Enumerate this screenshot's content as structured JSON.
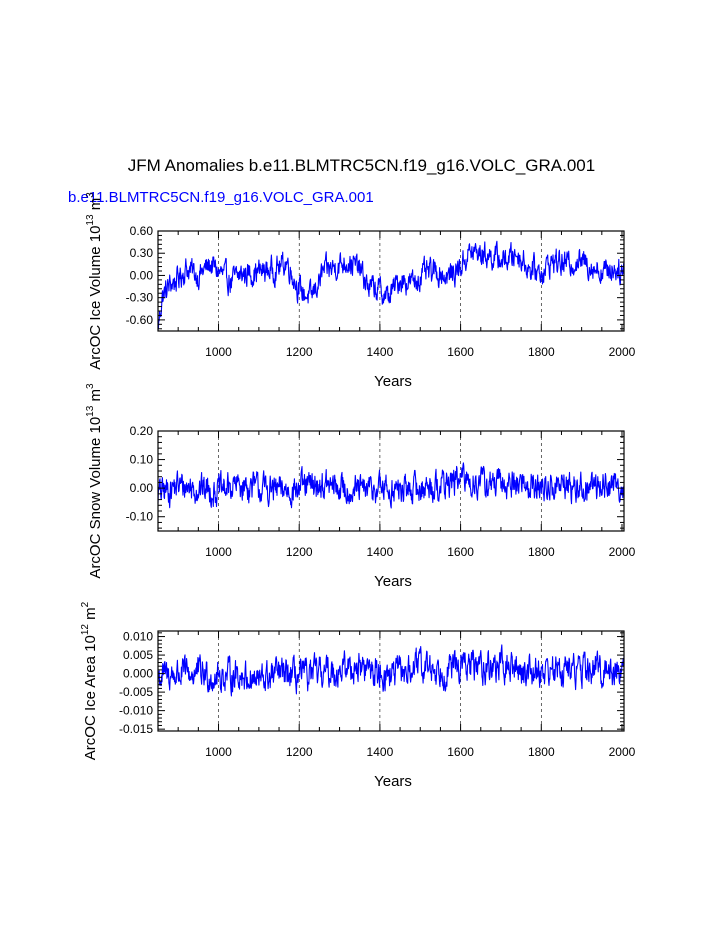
{
  "title": "JFM Anomalies b.e11.BLMTRC5CN.f19_g16.VOLC_GRA.001",
  "subtitle": "b.e11.BLMTRC5CN.f19_g16.VOLC_GRA.001",
  "series_color": "#0000ff",
  "chart_data": [
    {
      "type": "line",
      "name": "ice-volume",
      "xlabel": "Years",
      "ylabel_parts": [
        "ArcOC Ice Volume 10",
        "13",
        " m",
        "3"
      ],
      "xlim": [
        850,
        2005
      ],
      "ylim": [
        -0.75,
        0.6
      ],
      "xticks": [
        1000,
        1200,
        1400,
        1600,
        1800,
        2000
      ],
      "yticks": [
        -0.6,
        -0.3,
        0.0,
        0.3,
        0.6
      ],
      "ytick_labels": [
        "-0.60",
        "-0.30",
        "0.00",
        "0.30",
        "0.60"
      ],
      "gridlines_x": [
        1000,
        1200,
        1400,
        1600,
        1800
      ],
      "keypoints": [
        [
          850,
          -0.72
        ],
        [
          860,
          -0.3
        ],
        [
          880,
          -0.12
        ],
        [
          900,
          -0.05
        ],
        [
          920,
          0.1
        ],
        [
          950,
          0.0
        ],
        [
          980,
          0.15
        ],
        [
          1000,
          0.05
        ],
        [
          1030,
          -0.08
        ],
        [
          1060,
          0.02
        ],
        [
          1100,
          0.05
        ],
        [
          1140,
          0.08
        ],
        [
          1170,
          0.18
        ],
        [
          1200,
          -0.2
        ],
        [
          1230,
          -0.3
        ],
        [
          1260,
          0.05
        ],
        [
          1290,
          0.12
        ],
        [
          1320,
          0.2
        ],
        [
          1350,
          0.08
        ],
        [
          1370,
          -0.15
        ],
        [
          1400,
          -0.2
        ],
        [
          1420,
          -0.3
        ],
        [
          1450,
          -0.05
        ],
        [
          1480,
          -0.1
        ],
        [
          1510,
          0.02
        ],
        [
          1540,
          0.05
        ],
        [
          1570,
          -0.02
        ],
        [
          1600,
          0.12
        ],
        [
          1620,
          0.3
        ],
        [
          1650,
          0.3
        ],
        [
          1680,
          0.25
        ],
        [
          1710,
          0.2
        ],
        [
          1740,
          0.3
        ],
        [
          1770,
          0.1
        ],
        [
          1800,
          0.05
        ],
        [
          1830,
          0.2
        ],
        [
          1860,
          0.15
        ],
        [
          1890,
          0.2
        ],
        [
          1920,
          0.15
        ],
        [
          1950,
          0.05
        ],
        [
          1980,
          0.1
        ],
        [
          2005,
          0.05
        ]
      ],
      "noise_amplitude": 0.18
    },
    {
      "type": "line",
      "name": "snow-volume",
      "xlabel": "Years",
      "ylabel_parts": [
        "ArcOC Snow Volume 10",
        "13",
        " m",
        "3"
      ],
      "xlim": [
        850,
        2005
      ],
      "ylim": [
        -0.15,
        0.2
      ],
      "xticks": [
        1000,
        1200,
        1400,
        1600,
        1800,
        2000
      ],
      "yticks": [
        -0.1,
        0.0,
        0.1,
        0.2
      ],
      "ytick_labels": [
        "-0.10",
        "0.00",
        "0.10",
        "0.20"
      ],
      "gridlines_x": [
        1000,
        1200,
        1400,
        1600,
        1800
      ],
      "keypoints": [
        [
          850,
          -0.02
        ],
        [
          900,
          0.01
        ],
        [
          950,
          0.0
        ],
        [
          1000,
          -0.01
        ],
        [
          1050,
          0.01
        ],
        [
          1100,
          0.0
        ],
        [
          1150,
          -0.01
        ],
        [
          1200,
          0.0
        ],
        [
          1250,
          0.01
        ],
        [
          1300,
          0.0
        ],
        [
          1350,
          -0.01
        ],
        [
          1400,
          0.0
        ],
        [
          1450,
          -0.01
        ],
        [
          1500,
          0.0
        ],
        [
          1550,
          0.01
        ],
        [
          1600,
          0.03
        ],
        [
          1650,
          0.02
        ],
        [
          1700,
          0.01
        ],
        [
          1750,
          0.02
        ],
        [
          1800,
          0.0
        ],
        [
          1850,
          0.01
        ],
        [
          1900,
          0.0
        ],
        [
          1950,
          0.01
        ],
        [
          2005,
          0.01
        ]
      ],
      "noise_amplitude": 0.055
    },
    {
      "type": "line",
      "name": "ice-area",
      "xlabel": "Years",
      "ylabel_parts": [
        "ArcOC Ice Area 10",
        "12",
        " m",
        "2"
      ],
      "xlim": [
        850,
        2005
      ],
      "ylim": [
        -0.0155,
        0.0115
      ],
      "xticks": [
        1000,
        1200,
        1400,
        1600,
        1800,
        2000
      ],
      "yticks": [
        -0.015,
        -0.01,
        -0.005,
        0.0,
        0.005,
        0.01
      ],
      "ytick_labels": [
        "-0.015",
        "-0.010",
        "-0.005",
        "0.000",
        "0.005",
        "0.010"
      ],
      "gridlines_x": [
        1000,
        1200,
        1400,
        1600,
        1800
      ],
      "keypoints": [
        [
          850,
          -0.001
        ],
        [
          900,
          0.0
        ],
        [
          950,
          0.0
        ],
        [
          1000,
          -0.001
        ],
        [
          1050,
          0.0
        ],
        [
          1100,
          -0.002
        ],
        [
          1150,
          0.0
        ],
        [
          1200,
          -0.001
        ],
        [
          1250,
          0.0
        ],
        [
          1300,
          0.001
        ],
        [
          1350,
          0.002
        ],
        [
          1400,
          0.0
        ],
        [
          1450,
          0.0
        ],
        [
          1500,
          0.002
        ],
        [
          1550,
          0.001
        ],
        [
          1600,
          0.002
        ],
        [
          1650,
          0.002
        ],
        [
          1700,
          0.002
        ],
        [
          1750,
          0.001
        ],
        [
          1800,
          0.001
        ],
        [
          1850,
          0.001
        ],
        [
          1900,
          0.001
        ],
        [
          1950,
          0.001
        ],
        [
          2005,
          0.001
        ]
      ],
      "noise_amplitude": 0.0045
    }
  ]
}
